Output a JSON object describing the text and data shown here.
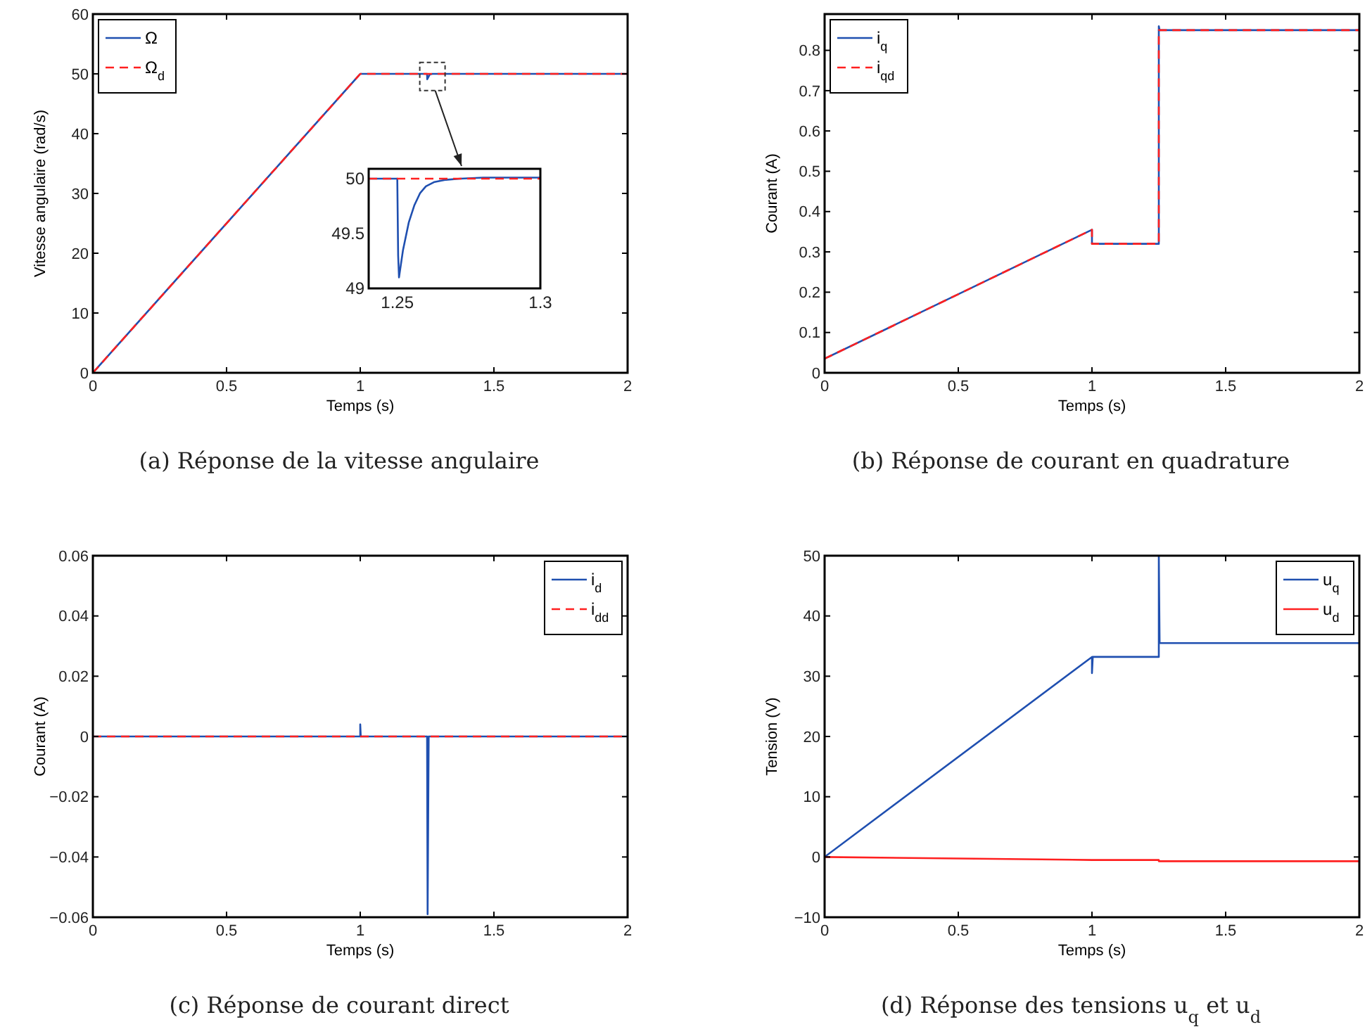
{
  "chart_data": [
    {
      "type": "line",
      "title": "(a) Réponse de la vitesse angulaire",
      "xlabel": "Temps (s)",
      "ylabel": "Vitesse angulaire (rad/s)",
      "xlim": [
        0,
        2
      ],
      "ylim": [
        0,
        60
      ],
      "xticks": [
        0,
        0.5,
        1,
        1.5,
        2
      ],
      "yticks": [
        0,
        10,
        20,
        30,
        40,
        50,
        60
      ],
      "legend": "top left",
      "grid": false,
      "series": [
        {
          "name": "Ω",
          "color": "#1f4fb0",
          "line_style": "solid",
          "x": [
            0,
            1,
            1.25,
            1.2505,
            1.26,
            1.27,
            2
          ],
          "values": [
            0,
            50,
            50,
            49.1,
            49.9,
            50,
            50
          ]
        },
        {
          "name": "Ω$_{d}$",
          "color": "#ff2020",
          "line_style": "dashed",
          "x": [
            0,
            1,
            2
          ],
          "values": [
            0,
            50,
            50
          ]
        }
      ]
    },
    {
      "type": "line",
      "xlim": [
        1.24,
        1.3
      ],
      "ylim": [
        49,
        50.09
      ],
      "xticks": [
        1.25,
        1.3
      ],
      "yticks": [
        49,
        49.5,
        50
      ],
      "legend": false,
      "grid": false,
      "series": [
        {
          "color": "#1f4fb0",
          "line_style": "solid",
          "x": [
            1.24,
            1.25,
            1.2503,
            1.2506,
            1.252,
            1.254,
            1.256,
            1.258,
            1.26,
            1.263,
            1.267,
            1.272,
            1.28,
            1.3
          ],
          "values": [
            50,
            50,
            49.3,
            49.1,
            49.35,
            49.6,
            49.76,
            49.87,
            49.93,
            49.97,
            49.99,
            50,
            50.01,
            50.01
          ]
        },
        {
          "color": "#ff2020",
          "line_style": "dashed",
          "x": [
            1.24,
            1.3
          ],
          "values": [
            50,
            50
          ]
        }
      ]
    },
    {
      "type": "line",
      "title": "(b) Réponse de courant en quadrature",
      "xlabel": "Temps (s)",
      "ylabel": "Courant (A)",
      "xlim": [
        0,
        2
      ],
      "ylim": [
        0,
        0.89
      ],
      "xticks": [
        0,
        0.5,
        1,
        1.5,
        2
      ],
      "yticks": [
        0,
        0.1,
        0.2,
        0.3,
        0.4,
        0.5,
        0.6,
        0.7,
        0.8
      ],
      "legend": "top left",
      "grid": false,
      "series": [
        {
          "name": "i$_{q}$",
          "color": "#1f4fb0",
          "line_style": "solid",
          "x": [
            0,
            1,
            1,
            1.25,
            1.25,
            1.253,
            2
          ],
          "values": [
            0.035,
            0.355,
            0.32,
            0.32,
            0.86,
            0.85,
            0.85
          ]
        },
        {
          "name": "i$_{qd}$",
          "color": "#ff2020",
          "line_style": "dashed",
          "x": [
            0,
            1,
            1,
            1.25,
            1.25,
            2
          ],
          "values": [
            0.035,
            0.355,
            0.32,
            0.32,
            0.85,
            0.85
          ]
        }
      ]
    },
    {
      "type": "line",
      "title": "(c) Réponse de courant direct",
      "xlabel": "Temps (s)",
      "ylabel": "Courant (A)",
      "xlim": [
        0,
        2
      ],
      "ylim": [
        -0.06,
        0.06
      ],
      "xticks": [
        0,
        0.5,
        1,
        1.5,
        2
      ],
      "yticks": [
        -0.06,
        -0.04,
        -0.02,
        0,
        0.02,
        0.04,
        0.06
      ],
      "legend": "top right",
      "grid": false,
      "series": [
        {
          "name": "i$_{d}$",
          "color": "#1f4fb0",
          "line_style": "solid",
          "x": [
            0,
            1,
            1,
            1.002,
            1.25,
            1.252,
            1.256,
            2
          ],
          "values": [
            0,
            0,
            0.004,
            0,
            0,
            -0.059,
            0,
            0
          ]
        },
        {
          "name": "i$_{dd}$",
          "color": "#ff2020",
          "line_style": "dashed",
          "x": [
            0,
            2
          ],
          "values": [
            0,
            0
          ]
        }
      ]
    },
    {
      "type": "line",
      "title": "(d) Réponse des tensions u$_{q}$ et u$_{d}$",
      "xlabel": "Temps (s)",
      "ylabel": "Tension (V)",
      "xlim": [
        0,
        2
      ],
      "ylim": [
        -10,
        50
      ],
      "xticks": [
        0,
        0.5,
        1,
        1.5,
        2
      ],
      "yticks": [
        -10,
        0,
        10,
        20,
        30,
        40,
        50
      ],
      "legend": "top right",
      "grid": false,
      "series": [
        {
          "name": "u$_{q}$",
          "color": "#1f4fb0",
          "line_style": "solid",
          "x": [
            0,
            1,
            1,
            1.003,
            1.25,
            1.25,
            1.253,
            2
          ],
          "values": [
            0,
            33.2,
            30.5,
            33.2,
            33.2,
            50,
            35.5,
            35.5
          ]
        },
        {
          "name": "u$_{d}$",
          "color": "#ff2020",
          "line_style": "solid",
          "x": [
            0,
            1,
            1.25,
            1.25,
            2
          ],
          "values": [
            0,
            -0.5,
            -0.5,
            -0.7,
            -0.7
          ]
        }
      ]
    }
  ]
}
